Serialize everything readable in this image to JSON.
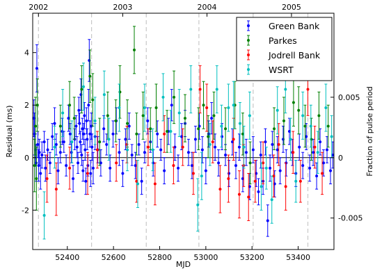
{
  "chart_data": {
    "type": "scatter",
    "xlabel": "MJD",
    "ylabel": "Residual (ms)",
    "ylabel_right": "Fraction of pulse period",
    "xlim": [
      52250,
      53555
    ],
    "ylim": [
      -3.5,
      5.5
    ],
    "x_ticks": [
      52400,
      52600,
      52800,
      53000,
      53200,
      53400
    ],
    "y_ticks": [
      -2,
      0,
      2,
      4
    ],
    "right_ticks": [
      {
        "label": "0.005",
        "y": 2.3
      },
      {
        "label": "0",
        "y": 0
      },
      {
        "label": "-0.005",
        "y": -2.3
      }
    ],
    "top_ticks": [
      {
        "label": "2002",
        "x": 52275
      },
      {
        "label": "2003",
        "x": 52640
      },
      {
        "label": "2004",
        "x": 53005
      },
      {
        "label": "2005",
        "x": 53371
      }
    ],
    "dashed_lines_x": [
      52275,
      52505,
      52742,
      52970,
      53205,
      53442
    ],
    "zero_line": 0,
    "grid": false,
    "legend_position": "top-right",
    "series": [
      {
        "name": "Green Bank",
        "color": "#0000ff",
        "points": [
          [
            52255,
            1.5,
            0.7
          ],
          [
            52258,
            0.9,
            0.8
          ],
          [
            52262,
            0.3,
            0.6
          ],
          [
            52265,
            -0.2,
            0.7
          ],
          [
            52268,
            3.4,
            0.9
          ],
          [
            52272,
            0.5,
            0.5
          ],
          [
            52276,
            -0.3,
            0.6
          ],
          [
            52279,
            0.2,
            0.5
          ],
          [
            52284,
            -0.6,
            0.6
          ],
          [
            52290,
            0.1,
            0.5
          ],
          [
            52300,
            0.6,
            0.4
          ],
          [
            52305,
            -0.4,
            0.5
          ],
          [
            52315,
            0.3,
            0.4
          ],
          [
            52325,
            -0.2,
            0.4
          ],
          [
            52335,
            0.8,
            0.5
          ],
          [
            52345,
            1.3,
            0.6
          ],
          [
            52352,
            0.5,
            0.4
          ],
          [
            52360,
            -0.5,
            0.5
          ],
          [
            52370,
            0.2,
            0.4
          ],
          [
            52378,
            1.0,
            0.5
          ],
          [
            52385,
            0.6,
            0.4
          ],
          [
            52395,
            -0.3,
            0.4
          ],
          [
            52405,
            1.5,
            0.5
          ],
          [
            52412,
            0.9,
            0.4
          ],
          [
            52418,
            0.2,
            0.4
          ],
          [
            52425,
            -0.8,
            0.5
          ],
          [
            52432,
            0.7,
            0.4
          ],
          [
            52438,
            1.2,
            0.4
          ],
          [
            52442,
            0.4,
            0.4
          ],
          [
            52446,
            -0.2,
            0.4
          ],
          [
            52450,
            1.8,
            0.5
          ],
          [
            52453,
            1.3,
            0.4
          ],
          [
            52456,
            0.6,
            0.4
          ],
          [
            52459,
            2.4,
            0.6
          ],
          [
            52462,
            0.1,
            0.4
          ],
          [
            52465,
            1.1,
            0.4
          ],
          [
            52468,
            -0.5,
            0.4
          ],
          [
            52471,
            0.9,
            0.4
          ],
          [
            52474,
            1.6,
            0.5
          ],
          [
            52477,
            0.3,
            0.4
          ],
          [
            52480,
            -0.9,
            0.5
          ],
          [
            52483,
            1.4,
            0.5
          ],
          [
            52486,
            0.7,
            0.4
          ],
          [
            52489,
            -0.3,
            0.4
          ],
          [
            52492,
            2.0,
            0.6
          ],
          [
            52495,
            3.7,
            0.8
          ],
          [
            52498,
            0.9,
            0.5
          ],
          [
            52501,
            -0.6,
            0.5
          ],
          [
            52504,
            1.2,
            0.5
          ],
          [
            52507,
            0.4,
            0.5
          ],
          [
            52512,
            -0.4,
            0.6
          ],
          [
            52520,
            0.8,
            0.5
          ],
          [
            52532,
            0.3,
            0.5
          ],
          [
            52545,
            -0.2,
            0.5
          ],
          [
            52558,
            1.1,
            0.5
          ],
          [
            52570,
            0.5,
            0.4
          ],
          [
            52585,
            -0.4,
            0.5
          ],
          [
            52598,
            0.9,
            0.5
          ],
          [
            52612,
            1.4,
            0.5
          ],
          [
            52625,
            0.2,
            0.5
          ],
          [
            52640,
            -0.6,
            0.5
          ],
          [
            52652,
            0.7,
            0.4
          ],
          [
            52668,
            1.2,
            0.5
          ],
          [
            52680,
            0.1,
            0.4
          ],
          [
            52695,
            -0.3,
            0.5
          ],
          [
            52710,
            0.5,
            0.4
          ],
          [
            52722,
            -0.9,
            0.5
          ],
          [
            52735,
            0.2,
            0.4
          ],
          [
            52748,
            1.4,
            0.5
          ],
          [
            52760,
            0.6,
            0.4
          ],
          [
            52772,
            -0.2,
            0.5
          ],
          [
            52790,
            0.9,
            0.5
          ],
          [
            52805,
            0.3,
            0.4
          ],
          [
            52820,
            -0.5,
            0.5
          ],
          [
            52838,
            1.0,
            0.5
          ],
          [
            52852,
            2.0,
            0.6
          ],
          [
            52866,
            0.4,
            0.5
          ],
          [
            52880,
            -0.4,
            0.5
          ],
          [
            52895,
            0.8,
            0.5
          ],
          [
            52910,
            1.3,
            0.5
          ],
          [
            52925,
            0.2,
            0.5
          ],
          [
            52940,
            -0.3,
            0.5
          ],
          [
            52955,
            0.7,
            0.5
          ],
          [
            52972,
            1.2,
            0.5
          ],
          [
            52985,
            0.3,
            0.5
          ],
          [
            53000,
            -0.5,
            0.5
          ],
          [
            53012,
            0.9,
            0.5
          ],
          [
            53025,
            1.5,
            0.6
          ],
          [
            53040,
            0.4,
            0.5
          ],
          [
            53055,
            -0.2,
            0.5
          ],
          [
            53070,
            0.8,
            0.5
          ],
          [
            53085,
            0.1,
            0.4
          ],
          [
            53100,
            -0.6,
            0.5
          ],
          [
            53115,
            0.6,
            0.5
          ],
          [
            53130,
            -0.3,
            0.5
          ],
          [
            53145,
            0.4,
            0.5
          ],
          [
            53160,
            -0.8,
            0.5
          ],
          [
            53175,
            0.2,
            0.5
          ],
          [
            53190,
            -1.1,
            0.5
          ],
          [
            53205,
            0.3,
            0.5
          ],
          [
            53218,
            -0.6,
            0.5
          ],
          [
            53228,
            -1.3,
            0.5
          ],
          [
            53238,
            0.1,
            0.5
          ],
          [
            53248,
            -0.9,
            0.5
          ],
          [
            53258,
            0.6,
            0.5
          ],
          [
            53268,
            -2.4,
            0.6
          ],
          [
            53278,
            -0.4,
            0.5
          ],
          [
            53288,
            0.5,
            0.5
          ],
          [
            53298,
            -1.0,
            0.5
          ],
          [
            53310,
            0.3,
            0.5
          ],
          [
            53322,
            -0.5,
            0.5
          ],
          [
            53335,
            0.7,
            0.5
          ],
          [
            53348,
            -0.2,
            0.5
          ],
          [
            53362,
            1.0,
            0.5
          ],
          [
            53375,
            0.2,
            0.5
          ],
          [
            53390,
            -0.6,
            0.5
          ],
          [
            53405,
            0.4,
            0.5
          ],
          [
            53420,
            -0.3,
            0.5
          ],
          [
            53435,
            0.8,
            0.5
          ],
          [
            53450,
            -0.4,
            0.5
          ],
          [
            53465,
            0.2,
            0.5
          ],
          [
            53480,
            -0.7,
            0.5
          ],
          [
            53495,
            0.6,
            0.5
          ],
          [
            53510,
            -0.2,
            0.5
          ],
          [
            53525,
            0.3,
            0.5
          ],
          [
            53540,
            -0.5,
            0.5
          ],
          [
            53550,
            0.1,
            0.5
          ]
        ]
      },
      {
        "name": "Parkes",
        "color": "#007f00",
        "points": [
          [
            52258,
            -0.3,
            1.0
          ],
          [
            52262,
            1.2,
            1.1
          ],
          [
            52266,
            -0.8,
            1.2
          ],
          [
            52270,
            2.0,
            1.0
          ],
          [
            52370,
            1.2,
            0.8
          ],
          [
            52410,
            2.0,
            0.9
          ],
          [
            52430,
            1.5,
            0.8
          ],
          [
            52462,
            2.6,
            0.9
          ],
          [
            52498,
            3.1,
            1.0
          ],
          [
            52510,
            2.2,
            1.0
          ],
          [
            52540,
            0.6,
            0.9
          ],
          [
            52575,
            1.6,
            0.9
          ],
          [
            52610,
            1.4,
            0.8
          ],
          [
            52628,
            2.5,
            1.0
          ],
          [
            52660,
            1.3,
            0.9
          ],
          [
            52690,
            4.1,
            0.9
          ],
          [
            52700,
            0.9,
            0.8
          ],
          [
            52728,
            1.6,
            0.9
          ],
          [
            52760,
            1.1,
            0.8
          ],
          [
            52785,
            1.9,
            0.9
          ],
          [
            52832,
            1.0,
            0.8
          ],
          [
            52862,
            2.3,
            1.0
          ],
          [
            52910,
            1.5,
            0.9
          ],
          [
            52968,
            1.1,
            0.8
          ],
          [
            52990,
            2.0,
            0.9
          ],
          [
            53010,
            0.8,
            0.8
          ],
          [
            53035,
            1.6,
            0.9
          ],
          [
            53085,
            1.1,
            0.8
          ],
          [
            53126,
            2.0,
            0.9
          ],
          [
            53160,
            0.9,
            0.8
          ],
          [
            53192,
            -0.2,
            0.8
          ],
          [
            53296,
            1.1,
            0.8
          ],
          [
            53338,
            1.4,
            0.9
          ],
          [
            53380,
            2.1,
            0.9
          ],
          [
            53402,
            1.8,
            0.9
          ],
          [
            53430,
            1.2,
            0.8
          ],
          [
            53457,
            0.7,
            0.8
          ],
          [
            53490,
            1.6,
            0.9
          ],
          [
            53530,
            1.2,
            0.8
          ]
        ]
      },
      {
        "name": "Jodrell Bank",
        "color": "#ff0000",
        "points": [
          [
            52312,
            -0.8,
            0.9
          ],
          [
            52352,
            -1.2,
            1.0
          ],
          [
            52410,
            -0.4,
            0.8
          ],
          [
            52488,
            -0.6,
            0.8
          ],
          [
            52530,
            0.3,
            0.7
          ],
          [
            52612,
            -0.2,
            0.7
          ],
          [
            52658,
            0.5,
            0.7
          ],
          [
            52700,
            -0.9,
            0.8
          ],
          [
            52750,
            0.4,
            0.7
          ],
          [
            52780,
            -1.0,
            0.8
          ],
          [
            52820,
            0.9,
            0.7
          ],
          [
            52860,
            -0.3,
            0.7
          ],
          [
            52900,
            0.4,
            0.7
          ],
          [
            52946,
            -0.6,
            0.8
          ],
          [
            52975,
            2.6,
            0.9
          ],
          [
            53004,
            1.9,
            0.9
          ],
          [
            53030,
            0.6,
            0.8
          ],
          [
            53062,
            -1.2,
            0.9
          ],
          [
            53098,
            -0.8,
            0.9
          ],
          [
            53120,
            0.7,
            0.8
          ],
          [
            53145,
            -1.4,
            0.9
          ],
          [
            53164,
            -0.3,
            0.8
          ],
          [
            53185,
            -1.5,
            0.9
          ],
          [
            53214,
            -0.9,
            0.8
          ],
          [
            53248,
            -0.2,
            0.8
          ],
          [
            53294,
            -0.7,
            0.8
          ],
          [
            53316,
            0.5,
            0.8
          ],
          [
            53346,
            -1.1,
            0.9
          ],
          [
            53378,
            0.2,
            0.8
          ],
          [
            53410,
            -0.9,
            0.8
          ],
          [
            53442,
            2.6,
            1.0
          ],
          [
            53472,
            0.4,
            0.8
          ],
          [
            53504,
            -0.6,
            0.8
          ]
        ]
      },
      {
        "name": "WSRT",
        "color": "#00bfbf",
        "points": [
          [
            52300,
            -2.2,
            0.9
          ],
          [
            52345,
            0.4,
            0.8
          ],
          [
            52380,
            1.7,
            0.9
          ],
          [
            52420,
            0.6,
            0.8
          ],
          [
            52470,
            2.7,
            0.9
          ],
          [
            52520,
            1.4,
            0.9
          ],
          [
            52560,
            2.4,
            0.9
          ],
          [
            52580,
            0.7,
            0.8
          ],
          [
            52625,
            1.9,
            0.9
          ],
          [
            52660,
            0.3,
            0.8
          ],
          [
            52705,
            -1.0,
            0.9
          ],
          [
            52735,
            1.9,
            0.9
          ],
          [
            52770,
            0.3,
            0.8
          ],
          [
            52815,
            2.3,
            0.9
          ],
          [
            52848,
            1.0,
            0.8
          ],
          [
            52885,
            1.7,
            0.9
          ],
          [
            52935,
            2.6,
            0.9
          ],
          [
            52965,
            -1.8,
            1.0
          ],
          [
            52982,
            -0.7,
            0.9
          ],
          [
            53018,
            0.5,
            0.8
          ],
          [
            53048,
            2.6,
            0.9
          ],
          [
            53068,
            1.2,
            0.8
          ],
          [
            53098,
            1.9,
            0.9
          ],
          [
            53120,
            2.0,
            0.9
          ],
          [
            53148,
            1.3,
            0.8
          ],
          [
            53165,
            0.4,
            0.8
          ],
          [
            53190,
            1.6,
            0.9
          ],
          [
            53240,
            -1.1,
            0.9
          ],
          [
            53262,
            -0.4,
            0.8
          ],
          [
            53286,
            -1.6,
            0.9
          ],
          [
            53310,
            1.8,
            0.9
          ],
          [
            53345,
            2.6,
            0.9
          ],
          [
            53367,
            0.7,
            0.8
          ],
          [
            53390,
            -0.9,
            0.8
          ],
          [
            53420,
            1.6,
            0.9
          ],
          [
            53455,
            1.2,
            0.8
          ],
          [
            53485,
            0.2,
            0.8
          ],
          [
            53520,
            1.9,
            0.9
          ],
          [
            53545,
            0.8,
            0.8
          ]
        ]
      }
    ]
  }
}
